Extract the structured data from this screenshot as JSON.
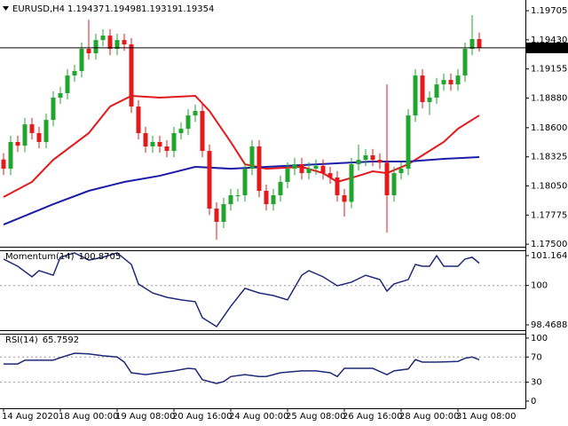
{
  "chart_data": [
    {
      "type": "candlestick",
      "symbol": "EURUSD,H4",
      "categories": [
        "14 Aug 2020",
        null,
        null,
        null,
        null,
        null,
        null,
        null,
        "18 Aug 00:00",
        null,
        null,
        null,
        null,
        null,
        null,
        null,
        "19 Aug 08:00",
        null,
        null,
        null,
        null,
        null,
        null,
        null,
        "20 Aug 16:00",
        null,
        null,
        null,
        null,
        null,
        null,
        null,
        "24 Aug 00:00",
        null,
        null,
        null,
        null,
        null,
        null,
        null,
        "25 Aug 08:00",
        null,
        null,
        null,
        null,
        null,
        null,
        null,
        "26 Aug 16:00",
        null,
        null,
        null,
        null,
        null,
        null,
        null,
        "28 Aug 00:00",
        null,
        null,
        null,
        null,
        null,
        null,
        null,
        "31 Aug 08:00",
        null,
        null,
        null
      ],
      "open": [
        1.183,
        1.18213,
        1.18465,
        1.1843,
        1.18632,
        1.18549,
        1.18465,
        1.18674,
        1.18884,
        1.18926,
        1.19093,
        1.19135,
        1.19345,
        1.19303,
        1.19428,
        1.1947,
        1.19345,
        1.19428,
        1.19387,
        1.188,
        1.18549,
        1.18423,
        1.18465,
        1.18423,
        1.18381,
        1.18549,
        1.1859,
        1.18716,
        1.18758,
        1.18381,
        1.17836,
        1.17711,
        1.17878,
        1.17962,
        1.17962,
        1.18213,
        1.18423,
        1.18004,
        1.17878,
        1.17962,
        1.18088,
        1.18213,
        1.18255,
        1.18171,
        1.18213,
        1.1824,
        1.18171,
        1.1813,
        1.17962,
        1.179,
        1.18255,
        1.18297,
        1.18339,
        1.18297,
        1.1827,
        1.17962,
        1.18171,
        1.18213,
        1.18716,
        1.19093,
        1.18842,
        1.18884,
        1.19009,
        1.19051,
        1.19009,
        1.19093,
        1.19345,
        1.19437
      ],
      "high": [
        1.1836,
        1.18525,
        1.18525,
        1.18692,
        1.18692,
        1.18609,
        1.18734,
        1.18944,
        1.18986,
        1.19153,
        1.19195,
        1.19405,
        1.1962,
        1.19488,
        1.1953,
        1.1953,
        1.19488,
        1.19488,
        1.19447,
        1.1886,
        1.18609,
        1.18525,
        1.18525,
        1.18483,
        1.18609,
        1.1865,
        1.18776,
        1.18818,
        1.18818,
        1.18441,
        1.17896,
        1.17938,
        1.18022,
        1.18022,
        1.18273,
        1.18483,
        1.18483,
        1.18064,
        1.18022,
        1.18148,
        1.18273,
        1.18315,
        1.18315,
        1.18273,
        1.183,
        1.183,
        1.18231,
        1.1819,
        1.18022,
        1.18315,
        1.1844,
        1.18399,
        1.18399,
        1.18357,
        1.19009,
        1.18231,
        1.18273,
        1.18776,
        1.19153,
        1.19153,
        1.18944,
        1.19069,
        1.19111,
        1.19111,
        1.19153,
        1.19405,
        1.19663,
        1.19498
      ],
      "low": [
        1.18153,
        1.18153,
        1.1837,
        1.1837,
        1.18489,
        1.18405,
        1.18405,
        1.18614,
        1.18824,
        1.18866,
        1.19033,
        1.19075,
        1.19243,
        1.19243,
        1.19368,
        1.19285,
        1.19285,
        1.19327,
        1.1874,
        1.18489,
        1.18363,
        1.18363,
        1.18363,
        1.18321,
        1.18321,
        1.18489,
        1.1853,
        1.18656,
        1.18321,
        1.17776,
        1.17543,
        1.17651,
        1.17818,
        1.17902,
        1.17902,
        1.18153,
        1.17944,
        1.17818,
        1.17818,
        1.17902,
        1.18028,
        1.18153,
        1.18111,
        1.18111,
        1.18153,
        1.18111,
        1.1807,
        1.17902,
        1.1776,
        1.1784,
        1.18195,
        1.18237,
        1.18237,
        1.1821,
        1.1761,
        1.17902,
        1.18111,
        1.18153,
        1.18656,
        1.18782,
        1.1872,
        1.18824,
        1.18949,
        1.18949,
        1.18949,
        1.19033,
        1.19285,
        1.19319
      ],
      "close": [
        1.18213,
        1.18465,
        1.1843,
        1.18632,
        1.18549,
        1.18465,
        1.18674,
        1.18884,
        1.18926,
        1.19093,
        1.19135,
        1.19345,
        1.19303,
        1.19428,
        1.1947,
        1.19345,
        1.19428,
        1.19387,
        1.188,
        1.18549,
        1.18423,
        1.18465,
        1.18423,
        1.18381,
        1.18549,
        1.1859,
        1.18716,
        1.18758,
        1.18381,
        1.17836,
        1.17711,
        1.17878,
        1.17962,
        1.17962,
        1.18213,
        1.18423,
        1.18004,
        1.17878,
        1.17962,
        1.18088,
        1.18213,
        1.18255,
        1.18171,
        1.18213,
        1.1824,
        1.18171,
        1.1813,
        1.17962,
        1.179,
        1.18255,
        1.18297,
        1.18339,
        1.18297,
        1.1827,
        1.17962,
        1.18171,
        1.18213,
        1.18716,
        1.19093,
        1.18842,
        1.18884,
        1.19009,
        1.19051,
        1.19009,
        1.19093,
        1.19345,
        1.19437,
        1.19354
      ],
      "up_color": "#22a52e",
      "down_color": "#e3191c",
      "price_line_color": "#000000",
      "series": [
        {
          "color": "#e3191c",
          "x": [
            0,
            4,
            7,
            12,
            15,
            18,
            22,
            27,
            29,
            32,
            34,
            37,
            42,
            45,
            47,
            50,
            52,
            54,
            57,
            59,
            62,
            64,
            67
          ],
          "values": [
            1.17945,
            1.18088,
            1.18297,
            1.18549,
            1.188,
            1.18901,
            1.18884,
            1.18901,
            1.18758,
            1.18465,
            1.18255,
            1.18213,
            1.1823,
            1.18171,
            1.18088,
            1.18146,
            1.18188,
            1.18171,
            1.18255,
            1.18339,
            1.18465,
            1.1859,
            1.18716
          ]
        },
        {
          "color": "#1c1ca8",
          "x": [
            0,
            7,
            12,
            17,
            22,
            27,
            32,
            37,
            42,
            47,
            52,
            57,
            62,
            67
          ],
          "values": [
            1.17685,
            1.17878,
            1.18004,
            1.18088,
            1.18146,
            1.1823,
            1.18213,
            1.1823,
            1.18247,
            1.18264,
            1.18281,
            1.18281,
            1.18306,
            1.18322
          ]
        }
      ],
      "ylim": [
        1.17476,
        1.19806
      ],
      "yticks": [
        1.19705,
        {
          "value": 1.1943,
          "label": "1.19430"
        },
        1.19155,
        {
          "value": 1.1888,
          "label": "1.18880"
        },
        {
          "value": 1.186,
          "label": "1.18600"
        },
        1.18325,
        {
          "value": 1.1805,
          "label": "1.18050"
        },
        1.17775,
        {
          "value": 1.175,
          "label": "1.17500"
        }
      ]
    },
    {
      "type": "line",
      "name": "Momentum(14)",
      "color": "#1f2a78",
      "x": [
        0,
        2,
        4,
        5,
        7,
        8,
        10,
        12,
        14,
        16,
        18,
        19,
        21,
        23,
        25,
        27,
        28,
        30,
        32,
        34,
        36,
        38,
        40,
        42,
        43,
        45,
        47,
        49,
        51,
        53,
        54,
        55,
        57,
        58,
        59,
        60,
        61,
        62,
        64,
        65,
        66,
        67
      ],
      "values": [
        101.03,
        100.75,
        100.34,
        100.58,
        100.4,
        101.1,
        101.27,
        100.99,
        101.1,
        101.27,
        100.82,
        100.06,
        99.71,
        99.54,
        99.44,
        99.37,
        98.75,
        98.4,
        99.19,
        99.89,
        99.71,
        99.61,
        99.44,
        100.4,
        100.58,
        100.34,
        99.99,
        100.13,
        100.4,
        100.23,
        99.78,
        100.06,
        100.23,
        100.82,
        100.75,
        100.75,
        101.16,
        100.75,
        100.75,
        101.03,
        101.1,
        100.8705
      ],
      "levels": [
        100
      ],
      "ylim": [
        98.2616,
        101.372
      ],
      "yticks": [
        101.1646,
        100,
        98.4688
      ]
    },
    {
      "type": "line",
      "name": "RSI(14)",
      "color": "#1f2a78",
      "x": [
        0,
        2,
        3,
        7,
        8,
        10,
        12,
        14,
        16,
        17,
        18,
        20,
        22,
        24,
        26,
        27,
        28,
        30,
        31,
        32,
        34,
        36,
        37,
        39,
        42,
        44,
        46,
        47,
        48,
        52,
        54,
        55,
        57,
        58,
        59,
        61,
        64,
        65,
        66,
        67
      ],
      "values": [
        59,
        59,
        65,
        65,
        69,
        76,
        75,
        72,
        70,
        62,
        45,
        42,
        45,
        48,
        52,
        51,
        34,
        28,
        31,
        39,
        42,
        39,
        39,
        45,
        48,
        48,
        45,
        39,
        52,
        52,
        42,
        48,
        51,
        66,
        62,
        62,
        63,
        68,
        70,
        65.7592
      ],
      "levels": [
        70,
        30
      ],
      "ylim": [
        -11.3,
        107
      ],
      "yticks": [
        100,
        70,
        30,
        0
      ]
    }
  ]
}
